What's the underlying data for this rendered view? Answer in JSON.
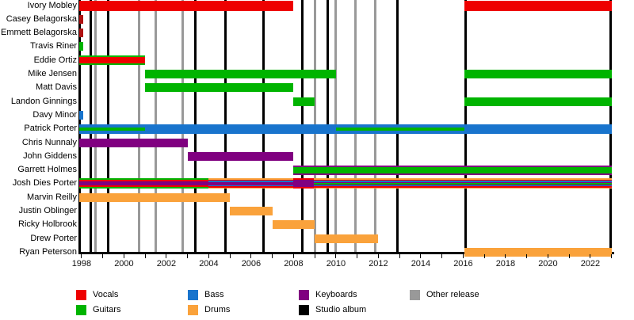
{
  "chart_data": {
    "type": "bar",
    "subtype": "band-member-timeline-gantt",
    "x_axis": {
      "min": 1997.89,
      "max": 2023.05,
      "tick_start": 1998,
      "tick_end": 2023,
      "tick_step": 1,
      "label_years": [
        1998,
        2000,
        2002,
        2004,
        2006,
        2008,
        2010,
        2012,
        2014,
        2016,
        2018,
        2020,
        2022
      ]
    },
    "colors": {
      "vocals": "#ee0000",
      "guitars": "#00b400",
      "bass": "#1874cd",
      "drums": "#faa23b",
      "keyboards": "#800080",
      "studio_album": "#000000",
      "other_release": "#999999",
      "former_vocals_stub": "#b01111"
    },
    "members": [
      {
        "name": "Ivory Mobley",
        "bars": [
          {
            "from": 1997.89,
            "to": 2008,
            "h": 13,
            "layers": [
              "vocals"
            ]
          },
          {
            "from": 2016.05,
            "to": 2023,
            "h": 13,
            "layers": [
              "vocals"
            ]
          }
        ]
      },
      {
        "name": "Casey Belagorska",
        "bars": [
          {
            "from": 1997.89,
            "to": 1998.06,
            "h": 11,
            "layers": [
              "former_vocals_stub"
            ]
          }
        ]
      },
      {
        "name": "Emmett Belagorska",
        "bars": [
          {
            "from": 1997.89,
            "to": 1998.06,
            "h": 11,
            "layers": [
              "former_vocals_stub"
            ]
          }
        ]
      },
      {
        "name": "Travis Riner",
        "bars": [
          {
            "from": 1997.89,
            "to": 1998.06,
            "h": 11,
            "layers": [
              "guitars"
            ]
          }
        ]
      },
      {
        "name": "Eddie Ortiz",
        "bars": [
          {
            "from": 1997.89,
            "to": 2001,
            "h": 12,
            "layers": [
              "guitars",
              "vocals"
            ]
          }
        ]
      },
      {
        "name": "Mike Jensen",
        "bars": [
          {
            "from": 2001,
            "to": 2010,
            "h": 11,
            "layers": [
              "guitars"
            ]
          },
          {
            "from": 2016.05,
            "to": 2023,
            "h": 11,
            "layers": [
              "guitars"
            ]
          }
        ]
      },
      {
        "name": "Matt Davis",
        "bars": [
          {
            "from": 2001,
            "to": 2008,
            "h": 11,
            "layers": [
              "guitars"
            ]
          }
        ]
      },
      {
        "name": "Landon Ginnings",
        "bars": [
          {
            "from": 2008,
            "to": 2009,
            "h": 11,
            "layers": [
              "guitars"
            ]
          },
          {
            "from": 2016.05,
            "to": 2023,
            "h": 11,
            "layers": [
              "guitars"
            ]
          }
        ]
      },
      {
        "name": "Davy Minor",
        "bars": [
          {
            "from": 1997.89,
            "to": 1998.06,
            "h": 11,
            "layers": [
              "bass"
            ]
          }
        ]
      },
      {
        "name": "Patrick Porter",
        "bars": [
          {
            "from": 1997.89,
            "to": 2023,
            "h": 12,
            "layers": [
              "bass"
            ]
          },
          {
            "from": 1997.89,
            "to": 2001,
            "h": 4,
            "layers": [
              "guitars"
            ]
          },
          {
            "from": 2010,
            "to": 2016.05,
            "h": 4,
            "layers": [
              "guitars"
            ]
          }
        ]
      },
      {
        "name": "Chris Nunnaly",
        "bars": [
          {
            "from": 1997.89,
            "to": 2003,
            "h": 11,
            "layers": [
              "keyboards"
            ]
          }
        ]
      },
      {
        "name": "John Giddens",
        "bars": [
          {
            "from": 2003,
            "to": 2008,
            "h": 11,
            "layers": [
              "keyboards"
            ]
          }
        ]
      },
      {
        "name": "Garrett Holmes",
        "bars": [
          {
            "from": 2008,
            "to": 2023,
            "h": 12,
            "layers": [
              "keyboards",
              "guitars"
            ]
          }
        ]
      },
      {
        "name": "Josh Dies Porter",
        "bars": [
          {
            "from": 1997.89,
            "to": 2004,
            "h": 13,
            "layers": [
              "guitars",
              "vocals",
              "keyboards"
            ]
          },
          {
            "from": 2004,
            "to": 2008,
            "h": 13,
            "layers": [
              "drums",
              "vocals",
              "bass",
              "keyboards"
            ]
          },
          {
            "from": 2008,
            "to": 2008.95,
            "h": 13,
            "layers": [
              "vocals",
              "keyboards"
            ]
          },
          {
            "from": 2008.95,
            "to": 2023,
            "h": 13,
            "layers": [
              "drums",
              "vocals",
              "bass",
              "keyboards",
              "guitars"
            ]
          }
        ]
      },
      {
        "name": "Marvin Reilly",
        "bars": [
          {
            "from": 1997.89,
            "to": 2005,
            "h": 11,
            "layers": [
              "drums"
            ]
          }
        ]
      },
      {
        "name": "Justin Oblinger",
        "bars": [
          {
            "from": 2005,
            "to": 2007,
            "h": 11,
            "layers": [
              "drums"
            ]
          }
        ]
      },
      {
        "name": "Ricky Holbrook",
        "bars": [
          {
            "from": 2007,
            "to": 2009,
            "h": 11,
            "layers": [
              "drums"
            ]
          }
        ]
      },
      {
        "name": "Drew Porter",
        "bars": [
          {
            "from": 2009,
            "to": 2012,
            "h": 11,
            "layers": [
              "drums"
            ]
          }
        ]
      },
      {
        "name": "Ryan Peterson",
        "bars": [
          {
            "from": 2016.05,
            "to": 2023,
            "h": 11,
            "layers": [
              "drums"
            ]
          }
        ]
      }
    ],
    "releases": [
      {
        "year": 1998.45,
        "type": "studio_album"
      },
      {
        "year": 1998.65,
        "type": "other_release"
      },
      {
        "year": 1999.25,
        "type": "studio_album"
      },
      {
        "year": 2000.7,
        "type": "other_release"
      },
      {
        "year": 2001.5,
        "type": "other_release"
      },
      {
        "year": 2002.75,
        "type": "other_release"
      },
      {
        "year": 2003.35,
        "type": "studio_album"
      },
      {
        "year": 2004.8,
        "type": "studio_album"
      },
      {
        "year": 2006.6,
        "type": "studio_album"
      },
      {
        "year": 2008.4,
        "type": "studio_album"
      },
      {
        "year": 2009.0,
        "type": "other_release"
      },
      {
        "year": 2009.6,
        "type": "studio_album"
      },
      {
        "year": 2009.97,
        "type": "other_release"
      },
      {
        "year": 2010.9,
        "type": "other_release"
      },
      {
        "year": 2011.85,
        "type": "other_release"
      },
      {
        "year": 2012.9,
        "type": "studio_album"
      },
      {
        "year": 2016.1,
        "type": "studio_album"
      },
      {
        "year": 2022.95,
        "type": "studio_album"
      }
    ],
    "legend": [
      {
        "label": "Vocals",
        "color": "vocals",
        "col": 0,
        "row": 0
      },
      {
        "label": "Guitars",
        "color": "guitars",
        "col": 0,
        "row": 1
      },
      {
        "label": "Bass",
        "color": "bass",
        "col": 1,
        "row": 0
      },
      {
        "label": "Drums",
        "color": "drums",
        "col": 1,
        "row": 1
      },
      {
        "label": "Keyboards",
        "color": "keyboards",
        "col": 2,
        "row": 0
      },
      {
        "label": "Studio album",
        "color": "studio_album",
        "col": 2,
        "row": 1
      },
      {
        "label": "Other release",
        "color": "other_release",
        "col": 3,
        "row": 0
      }
    ]
  }
}
